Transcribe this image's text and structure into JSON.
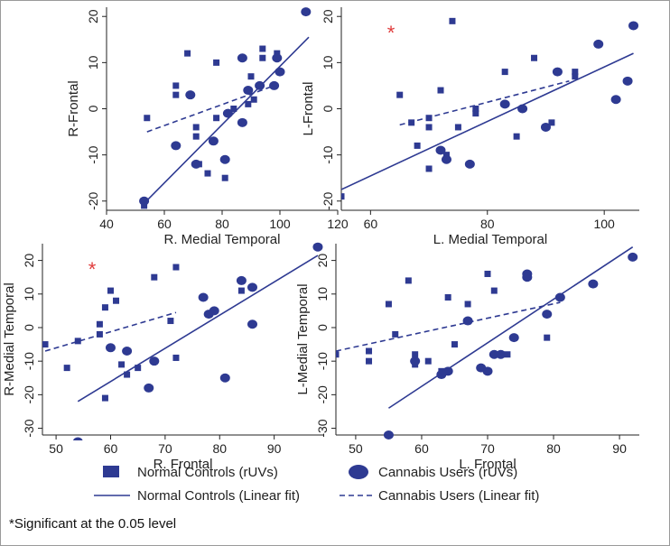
{
  "colors": {
    "marker": "#2e3a92",
    "line": "#2e3a92",
    "significance_star": "#e03c3c",
    "axis": "#222222"
  },
  "footnote": "*Significant at the 0.05 level",
  "legend": {
    "normal_markers": "Normal Controls (rUVs)",
    "cannabis_markers": "Cannabis Users (rUVs)",
    "normal_fit": "Normal Controls (Linear fit)",
    "cannabis_fit": "Cannabis Users (Linear fit)"
  },
  "chart_data": [
    {
      "type": "scatter",
      "xlabel": "R. Medial Temporal",
      "ylabel": "R-Frontal",
      "xlim": [
        40,
        120
      ],
      "ylim": [
        -22,
        22
      ],
      "xticks": [
        "40",
        "60",
        "80",
        "100",
        "120"
      ],
      "yticks": [
        "-20",
        "-10",
        "0",
        "10",
        "20"
      ],
      "significant_marker": "",
      "series": [
        {
          "name": "Normal Controls (rUVs)",
          "marker": "square",
          "points": [
            [
              54,
              -2
            ],
            [
              64,
              5
            ],
            [
              64,
              3
            ],
            [
              68,
              12
            ],
            [
              71,
              -4
            ],
            [
              71,
              -6
            ],
            [
              72,
              -12
            ],
            [
              75,
              -14
            ],
            [
              78,
              -2
            ],
            [
              78,
              10
            ],
            [
              81,
              -15
            ],
            [
              81,
              -11
            ],
            [
              84,
              0
            ],
            [
              89,
              1
            ],
            [
              90,
              7
            ],
            [
              91,
              2
            ],
            [
              94,
              13
            ],
            [
              94,
              11
            ],
            [
              99,
              12
            ],
            [
              53,
              -21
            ]
          ]
        },
        {
          "name": "Cannabis Users (rUVs)",
          "marker": "ellipse",
          "points": [
            [
              53,
              -20
            ],
            [
              64,
              -8
            ],
            [
              69,
              3
            ],
            [
              71,
              -12
            ],
            [
              77,
              -7
            ],
            [
              81,
              -11
            ],
            [
              82,
              -1
            ],
            [
              87,
              11
            ],
            [
              87,
              -3
            ],
            [
              89,
              4
            ],
            [
              93,
              5
            ],
            [
              98,
              5
            ],
            [
              99,
              11
            ],
            [
              100,
              8
            ],
            [
              109,
              21
            ]
          ]
        },
        {
          "name": "Normal Controls (Linear fit)",
          "style": "solid",
          "x": [
            53,
            110
          ],
          "y": [
            -20.5,
            15.5
          ]
        },
        {
          "name": "Cannabis Users (Linear fit)",
          "style": "dashed",
          "x": [
            54,
            98
          ],
          "y": [
            -5,
            5
          ]
        }
      ]
    },
    {
      "type": "scatter",
      "xlabel": "L. Medial Temporal",
      "ylabel": "L-Frontal",
      "xlim": [
        55,
        106
      ],
      "ylim": [
        -22,
        22
      ],
      "xticks": [
        "60",
        "80",
        "100"
      ],
      "yticks": [
        "-20",
        "-10",
        "0",
        "10",
        "20"
      ],
      "significant_marker": "*",
      "series": [
        {
          "name": "Normal Controls (rUVs)",
          "marker": "square",
          "points": [
            [
              55,
              -19
            ],
            [
              65,
              3
            ],
            [
              67,
              -3
            ],
            [
              68,
              -8
            ],
            [
              70,
              -2
            ],
            [
              70,
              -13
            ],
            [
              72,
              4
            ],
            [
              73,
              -10
            ],
            [
              74,
              19
            ],
            [
              75,
              -4
            ],
            [
              78,
              0
            ],
            [
              78,
              -1
            ],
            [
              83,
              8
            ],
            [
              85,
              -6
            ],
            [
              88,
              11
            ],
            [
              91,
              -3
            ],
            [
              95,
              8
            ],
            [
              95,
              7
            ],
            [
              70,
              -4
            ]
          ]
        },
        {
          "name": "Cannabis Users (rUVs)",
          "marker": "ellipse",
          "points": [
            [
              72,
              -9
            ],
            [
              73,
              -11
            ],
            [
              77,
              -12
            ],
            [
              83,
              1
            ],
            [
              86,
              0
            ],
            [
              90,
              -4
            ],
            [
              92,
              8
            ],
            [
              99,
              14
            ],
            [
              102,
              2
            ],
            [
              104,
              6
            ],
            [
              105,
              18
            ]
          ]
        },
        {
          "name": "Normal Controls (Linear fit)",
          "style": "solid",
          "x": [
            55,
            105
          ],
          "y": [
            -17.5,
            12
          ]
        },
        {
          "name": "Cannabis Users (Linear fit)",
          "style": "dashed",
          "x": [
            65,
            94
          ],
          "y": [
            -3.5,
            6
          ]
        }
      ]
    },
    {
      "type": "scatter",
      "xlabel": "R. Frontal",
      "ylabel": "R-Medial Temporal",
      "xlim": [
        47.5,
        99
      ],
      "ylim": [
        -32,
        25
      ],
      "xticks": [
        "50",
        "60",
        "70",
        "80",
        "90"
      ],
      "yticks": [
        "-30",
        "-20",
        "-10",
        "0",
        "10",
        "20"
      ],
      "significant_marker": "*",
      "series": [
        {
          "name": "Normal Controls (rUVs)",
          "marker": "square",
          "points": [
            [
              48,
              -5
            ],
            [
              52,
              -12
            ],
            [
              54,
              -4
            ],
            [
              58,
              -2
            ],
            [
              58,
              1
            ],
            [
              59,
              -21
            ],
            [
              59,
              6
            ],
            [
              60,
              11
            ],
            [
              61,
              8
            ],
            [
              62,
              -11
            ],
            [
              63,
              -14
            ],
            [
              65,
              -12
            ],
            [
              68,
              15
            ],
            [
              71,
              2
            ],
            [
              72,
              -9
            ],
            [
              72,
              18
            ],
            [
              84,
              11
            ]
          ]
        },
        {
          "name": "Cannabis Users (rUVs)",
          "marker": "ellipse",
          "points": [
            [
              54,
              -34
            ],
            [
              60,
              -6
            ],
            [
              63,
              -7
            ],
            [
              67,
              -18
            ],
            [
              68,
              -10
            ],
            [
              77,
              9
            ],
            [
              78,
              4
            ],
            [
              79,
              5
            ],
            [
              81,
              -15
            ],
            [
              84,
              14
            ],
            [
              86,
              12
            ],
            [
              86,
              1
            ],
            [
              98,
              24
            ]
          ]
        },
        {
          "name": "Normal Controls (Linear fit)",
          "style": "solid",
          "x": [
            54,
            98
          ],
          "y": [
            -22,
            21.5
          ]
        },
        {
          "name": "Cannabis Users (Linear fit)",
          "style": "dashed",
          "x": [
            48,
            72
          ],
          "y": [
            -7,
            4.5
          ]
        }
      ]
    },
    {
      "type": "scatter",
      "xlabel": "L. Frontal",
      "ylabel": "L-Medial Temporal",
      "xlim": [
        47,
        93
      ],
      "ylim": [
        -32,
        25
      ],
      "xticks": [
        "50",
        "60",
        "70",
        "80",
        "90"
      ],
      "yticks": [
        "-30",
        "-20",
        "-10",
        "0",
        "10",
        "20"
      ],
      "significant_marker": "",
      "series": [
        {
          "name": "Normal Controls (rUVs)",
          "marker": "square",
          "points": [
            [
              47,
              -8
            ],
            [
              52,
              -7
            ],
            [
              52,
              -10
            ],
            [
              55,
              7
            ],
            [
              56,
              -2
            ],
            [
              58,
              14
            ],
            [
              59,
              -8
            ],
            [
              59,
              -11
            ],
            [
              61,
              -10
            ],
            [
              63,
              -13
            ],
            [
              64,
              9
            ],
            [
              65,
              -5
            ],
            [
              67,
              7
            ],
            [
              69,
              -12
            ],
            [
              70,
              16
            ],
            [
              71,
              11
            ],
            [
              73,
              -8
            ],
            [
              79,
              -3
            ]
          ]
        },
        {
          "name": "Cannabis Users (rUVs)",
          "marker": "ellipse",
          "points": [
            [
              55,
              -32
            ],
            [
              59,
              -10
            ],
            [
              63,
              -14
            ],
            [
              64,
              -13
            ],
            [
              67,
              2
            ],
            [
              69,
              -12
            ],
            [
              70,
              -13
            ],
            [
              71,
              -8
            ],
            [
              72,
              -8
            ],
            [
              74,
              -3
            ],
            [
              76,
              15
            ],
            [
              76,
              16
            ],
            [
              79,
              4
            ],
            [
              81,
              9
            ],
            [
              86,
              13
            ],
            [
              92,
              21
            ]
          ]
        },
        {
          "name": "Normal Controls (Linear fit)",
          "style": "solid",
          "x": [
            55,
            92
          ],
          "y": [
            -24,
            24
          ]
        },
        {
          "name": "Cannabis Users (Linear fit)",
          "style": "dashed",
          "x": [
            47,
            81
          ],
          "y": [
            -7,
            7.5
          ]
        }
      ]
    }
  ]
}
